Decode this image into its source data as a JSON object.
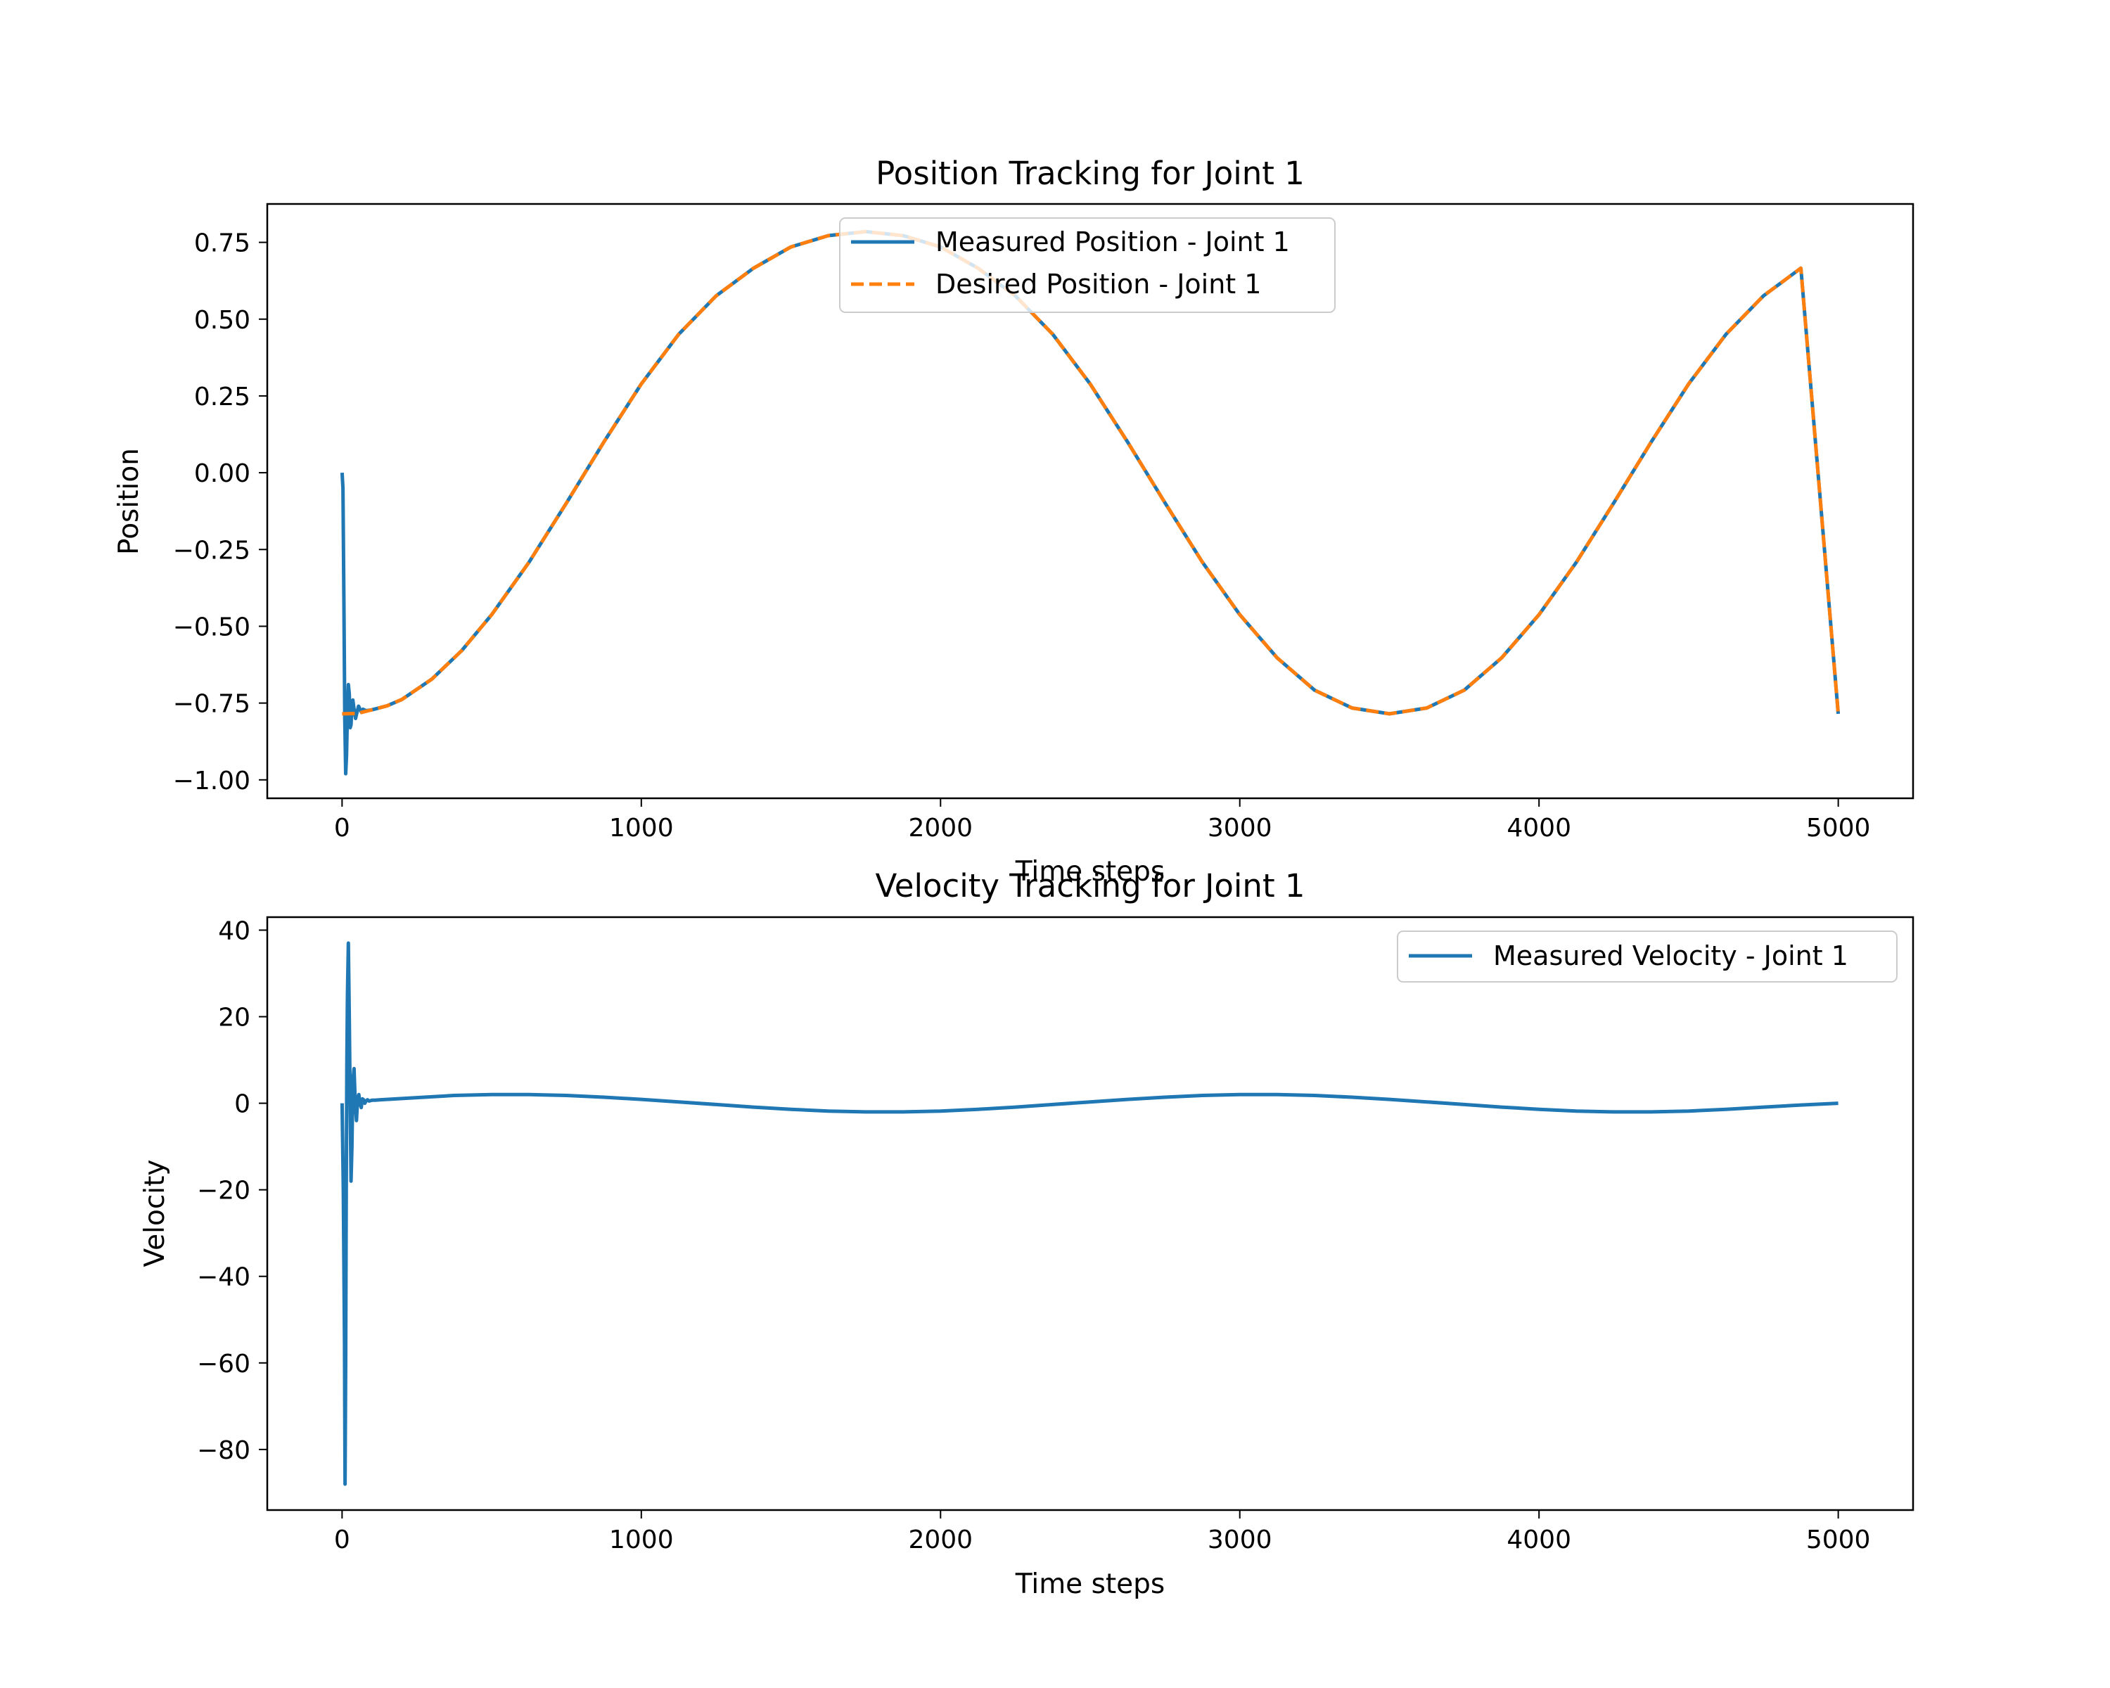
{
  "chart_data": [
    {
      "type": "line",
      "title": "Position Tracking for Joint 1",
      "xlabel": "Time steps",
      "ylabel": "Position",
      "xlim": [
        -250,
        5250
      ],
      "ylim": [
        -1.06,
        0.875
      ],
      "xticks": [
        0,
        1000,
        2000,
        3000,
        4000,
        5000
      ],
      "xtick_labels": [
        "0",
        "1000",
        "2000",
        "3000",
        "4000",
        "5000"
      ],
      "yticks": [
        0.75,
        0.5,
        0.25,
        0.0,
        -0.25,
        -0.5,
        -0.75,
        -1.0
      ],
      "ytick_labels": [
        "0.75",
        "0.50",
        "0.25",
        "0.00",
        "−0.25",
        "−0.50",
        "−0.75",
        "−1.00"
      ],
      "grid": false,
      "legend_position": "top-center",
      "series": [
        {
          "name": "Measured Position - Joint 1",
          "color": "#1f77b4",
          "style": "solid",
          "x": [
            0,
            3,
            6,
            9,
            12,
            15,
            18,
            21,
            24,
            27,
            30,
            33,
            36,
            40,
            45,
            50,
            55,
            60,
            65,
            70,
            80,
            100,
            150,
            200,
            300,
            400,
            500,
            625,
            750,
            875,
            1000,
            1125,
            1250,
            1375,
            1500,
            1625,
            1750,
            1875,
            2000,
            2125,
            2250,
            2375,
            2500,
            2625,
            2750,
            2875,
            3000,
            3125,
            3250,
            3375,
            3500,
            3625,
            3750,
            3875,
            4000,
            4125,
            4250,
            4375,
            4500,
            4625,
            4750,
            4875,
            5000
          ],
          "y": [
            0.0,
            -0.05,
            -0.4,
            -0.8,
            -0.98,
            -0.92,
            -0.78,
            -0.69,
            -0.72,
            -0.83,
            -0.82,
            -0.76,
            -0.74,
            -0.77,
            -0.8,
            -0.78,
            -0.76,
            -0.77,
            -0.78,
            -0.77,
            -0.775,
            -0.772,
            -0.759,
            -0.738,
            -0.672,
            -0.579,
            -0.462,
            -0.291,
            -0.098,
            0.1,
            0.289,
            0.451,
            0.576,
            0.666,
            0.735,
            0.772,
            0.785,
            0.772,
            0.735,
            0.666,
            0.576,
            0.451,
            0.289,
            0.1,
            -0.098,
            -0.291,
            -0.462,
            -0.603,
            -0.708,
            -0.766,
            -0.785,
            -0.766,
            -0.708,
            -0.603,
            -0.462,
            -0.291,
            -0.098,
            0.1,
            0.289,
            0.451,
            0.576,
            0.666,
            -0.785
          ]
        },
        {
          "name": "Desired Position - Joint 1",
          "color": "#ff7f0e",
          "style": "dashed",
          "x": [
            0,
            50,
            100,
            150,
            200,
            300,
            400,
            500,
            625,
            750,
            875,
            1000,
            1125,
            1250,
            1375,
            1500,
            1625,
            1750,
            1875,
            2000,
            2125,
            2250,
            2375,
            2500,
            2625,
            2750,
            2875,
            3000,
            3125,
            3250,
            3375,
            3500,
            3625,
            3750,
            3875,
            4000,
            4125,
            4250,
            4375,
            4500,
            4625,
            4750,
            4875,
            5000
          ],
          "y": [
            -0.785,
            -0.784,
            -0.772,
            -0.759,
            -0.738,
            -0.672,
            -0.579,
            -0.462,
            -0.291,
            -0.098,
            0.1,
            0.289,
            0.451,
            0.576,
            0.666,
            0.735,
            0.772,
            0.785,
            0.772,
            0.735,
            0.666,
            0.576,
            0.451,
            0.289,
            0.1,
            -0.098,
            -0.291,
            -0.462,
            -0.603,
            -0.708,
            -0.766,
            -0.785,
            -0.766,
            -0.708,
            -0.603,
            -0.462,
            -0.291,
            -0.098,
            0.1,
            0.289,
            0.451,
            0.576,
            0.666,
            -0.785
          ]
        }
      ]
    },
    {
      "type": "line",
      "title": "Velocity Tracking for Joint 1",
      "xlabel": "Time steps",
      "ylabel": "Velocity",
      "xlim": [
        -250,
        5250
      ],
      "ylim": [
        -94,
        43
      ],
      "xticks": [
        0,
        1000,
        2000,
        3000,
        4000,
        5000
      ],
      "xtick_labels": [
        "0",
        "1000",
        "2000",
        "3000",
        "4000",
        "5000"
      ],
      "yticks": [
        40,
        20,
        0,
        -20,
        -40,
        -60,
        -80
      ],
      "ytick_labels": [
        "40",
        "20",
        "0",
        "−20",
        "−40",
        "−60",
        "−80"
      ],
      "grid": false,
      "legend_position": "top-right",
      "series": [
        {
          "name": "Measured Velocity - Joint 1",
          "color": "#1f77b4",
          "style": "solid",
          "x": [
            0,
            4,
            8,
            10,
            12,
            14,
            16,
            18,
            21,
            24,
            27,
            30,
            33,
            36,
            40,
            44,
            48,
            52,
            56,
            60,
            64,
            68,
            72,
            76,
            80,
            85,
            90,
            95,
            100,
            110,
            125,
            250,
            375,
            500,
            625,
            750,
            875,
            1000,
            1125,
            1250,
            1375,
            1500,
            1625,
            1750,
            1875,
            2000,
            2125,
            2250,
            2375,
            2500,
            2625,
            2750,
            2875,
            3000,
            3125,
            3250,
            3375,
            3500,
            3625,
            3750,
            3875,
            4000,
            4125,
            4250,
            4375,
            4500,
            4625,
            4750,
            4875,
            5000
          ],
          "y": [
            0,
            -20,
            -55,
            -88,
            -60,
            -20,
            10,
            25,
            37,
            20,
            0,
            -18,
            -10,
            5,
            8,
            0,
            -4,
            1,
            2,
            0,
            -1,
            1,
            0.8,
            0,
            0.5,
            0.8,
            0.5,
            0.6,
            0.7,
            0.7,
            0.8,
            1.3,
            1.8,
            2.0,
            2.0,
            1.8,
            1.4,
            0.9,
            0.3,
            -0.3,
            -0.9,
            -1.4,
            -1.8,
            -2.0,
            -2.0,
            -1.8,
            -1.4,
            -0.9,
            -0.3,
            0.3,
            0.9,
            1.4,
            1.8,
            2.0,
            2.0,
            1.8,
            1.4,
            0.9,
            0.3,
            -0.3,
            -0.9,
            -1.4,
            -1.8,
            -2.0,
            -2.0,
            -1.8,
            -1.4,
            -0.9,
            -0.4,
            0.0
          ]
        }
      ]
    }
  ]
}
